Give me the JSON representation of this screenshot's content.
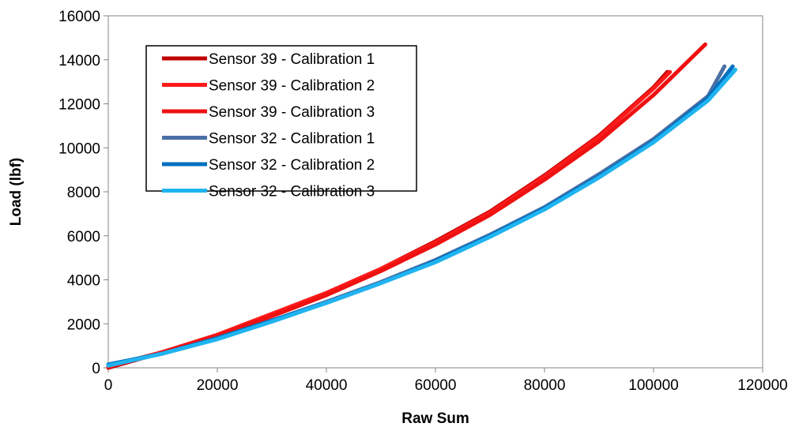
{
  "chart_data": {
    "type": "line",
    "xlabel": "Raw Sum",
    "ylabel": "Load (lbf)",
    "xlim": [
      0,
      120000
    ],
    "ylim": [
      0,
      16000
    ],
    "xticks": [
      0,
      20000,
      40000,
      60000,
      80000,
      100000,
      120000
    ],
    "yticks": [
      0,
      2000,
      4000,
      6000,
      8000,
      10000,
      12000,
      14000,
      16000
    ],
    "xtick_labels": [
      "0",
      "20000",
      "40000",
      "60000",
      "80000",
      "100000",
      "120000"
    ],
    "ytick_labels": [
      "0",
      "2000",
      "4000",
      "6000",
      "8000",
      "10000",
      "12000",
      "14000",
      "16000"
    ],
    "grid": false,
    "legend_position": "top-left",
    "series": [
      {
        "name": "Sensor 39 - Calibration 1",
        "color": "#C00000",
        "x": [
          0,
          10000,
          20000,
          30000,
          40000,
          50000,
          60000,
          70000,
          80000,
          90000,
          100000,
          102500
        ],
        "y": [
          0,
          700,
          1500,
          2450,
          3400,
          4500,
          5750,
          7100,
          8750,
          10550,
          12750,
          13450
        ]
      },
      {
        "name": "Sensor 39 - Calibration 2",
        "color": "#FF1A1A",
        "x": [
          0,
          10000,
          20000,
          30000,
          40000,
          50000,
          60000,
          70000,
          80000,
          90000,
          100000,
          103000
        ],
        "y": [
          50,
          720,
          1500,
          2450,
          3400,
          4500,
          5700,
          7050,
          8700,
          10500,
          12700,
          13450
        ]
      },
      {
        "name": "Sensor 39 - Calibration 3",
        "color": "#EE1111",
        "x": [
          0,
          10000,
          20000,
          30000,
          40000,
          50000,
          60000,
          70000,
          80000,
          90000,
          100000,
          109500
        ],
        "y": [
          100,
          700,
          1450,
          2350,
          3300,
          4400,
          5600,
          6950,
          8550,
          10300,
          12400,
          14700
        ]
      },
      {
        "name": "Sensor 32 - Calibration 1",
        "color": "#4A6FA5",
        "x": [
          0,
          10000,
          20000,
          30000,
          40000,
          50000,
          60000,
          70000,
          80000,
          90000,
          100000,
          110000,
          113000
        ],
        "y": [
          150,
          650,
          1350,
          2150,
          3000,
          3900,
          4900,
          6050,
          7300,
          8800,
          10400,
          12350,
          13700
        ]
      },
      {
        "name": "Sensor 32 - Calibration 2",
        "color": "#0070C0",
        "x": [
          0,
          10000,
          20000,
          30000,
          40000,
          50000,
          60000,
          70000,
          80000,
          90000,
          100000,
          110000,
          114500
        ],
        "y": [
          150,
          650,
          1350,
          2150,
          2950,
          3850,
          4850,
          6000,
          7250,
          8700,
          10300,
          12250,
          13700
        ]
      },
      {
        "name": "Sensor 32 - Calibration 3",
        "color": "#1FB4F0",
        "x": [
          0,
          10000,
          20000,
          30000,
          40000,
          50000,
          60000,
          70000,
          80000,
          90000,
          100000,
          110000,
          115000
        ],
        "y": [
          100,
          650,
          1300,
          2100,
          2950,
          3850,
          4800,
          5950,
          7200,
          8650,
          10250,
          12150,
          13550
        ]
      }
    ]
  }
}
